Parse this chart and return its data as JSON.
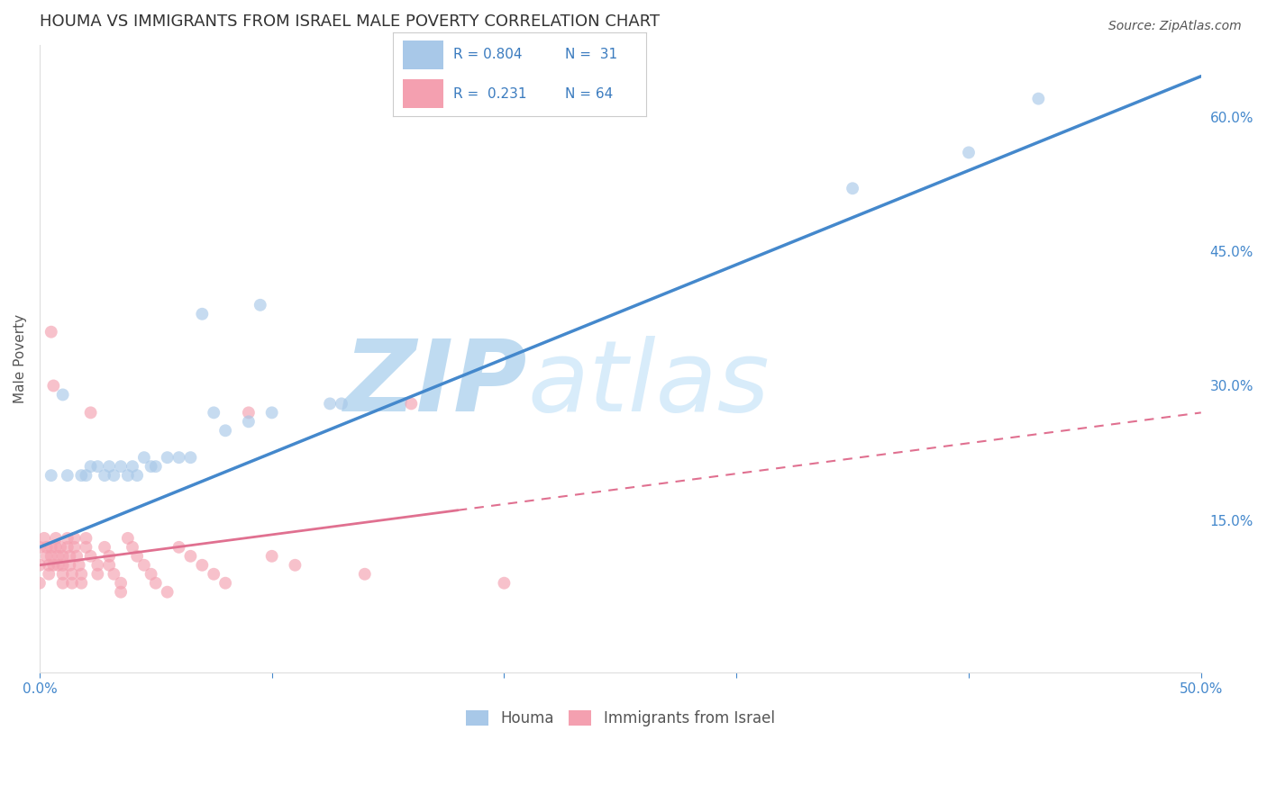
{
  "title": "HOUMA VS IMMIGRANTS FROM ISRAEL MALE POVERTY CORRELATION CHART",
  "source_text": "Source: ZipAtlas.com",
  "ylabel": "Male Poverty",
  "xlim": [
    0.0,
    0.5
  ],
  "ylim": [
    -0.02,
    0.68
  ],
  "xticks": [
    0.0,
    0.1,
    0.2,
    0.3,
    0.4,
    0.5
  ],
  "xticklabels": [
    "0.0%",
    "",
    "",
    "",
    "",
    "50.0%"
  ],
  "yticks_right": [
    0.15,
    0.3,
    0.45,
    0.6
  ],
  "ytick_right_labels": [
    "15.0%",
    "30.0%",
    "45.0%",
    "60.0%"
  ],
  "grid_color": "#cccccc",
  "background_color": "#ffffff",
  "houma_color": "#a8c8e8",
  "houma_edge_color": "#7aaed4",
  "israel_color": "#f4a0b0",
  "israel_edge_color": "#e07090",
  "houma_R": 0.804,
  "houma_N": 31,
  "israel_R": 0.231,
  "israel_N": 64,
  "houma_scatter": [
    [
      0.005,
      0.2
    ],
    [
      0.01,
      0.29
    ],
    [
      0.012,
      0.2
    ],
    [
      0.018,
      0.2
    ],
    [
      0.02,
      0.2
    ],
    [
      0.022,
      0.21
    ],
    [
      0.025,
      0.21
    ],
    [
      0.028,
      0.2
    ],
    [
      0.03,
      0.21
    ],
    [
      0.032,
      0.2
    ],
    [
      0.035,
      0.21
    ],
    [
      0.038,
      0.2
    ],
    [
      0.04,
      0.21
    ],
    [
      0.042,
      0.2
    ],
    [
      0.045,
      0.22
    ],
    [
      0.048,
      0.21
    ],
    [
      0.05,
      0.21
    ],
    [
      0.055,
      0.22
    ],
    [
      0.06,
      0.22
    ],
    [
      0.065,
      0.22
    ],
    [
      0.07,
      0.38
    ],
    [
      0.075,
      0.27
    ],
    [
      0.08,
      0.25
    ],
    [
      0.09,
      0.26
    ],
    [
      0.095,
      0.39
    ],
    [
      0.1,
      0.27
    ],
    [
      0.125,
      0.28
    ],
    [
      0.13,
      0.28
    ],
    [
      0.35,
      0.52
    ],
    [
      0.4,
      0.56
    ],
    [
      0.43,
      0.62
    ]
  ],
  "israel_scatter": [
    [
      0.0,
      0.12
    ],
    [
      0.0,
      0.1
    ],
    [
      0.0,
      0.08
    ],
    [
      0.002,
      0.13
    ],
    [
      0.003,
      0.12
    ],
    [
      0.003,
      0.11
    ],
    [
      0.004,
      0.1
    ],
    [
      0.004,
      0.09
    ],
    [
      0.005,
      0.12
    ],
    [
      0.005,
      0.11
    ],
    [
      0.005,
      0.36
    ],
    [
      0.006,
      0.3
    ],
    [
      0.006,
      0.1
    ],
    [
      0.007,
      0.13
    ],
    [
      0.007,
      0.12
    ],
    [
      0.008,
      0.11
    ],
    [
      0.008,
      0.1
    ],
    [
      0.009,
      0.12
    ],
    [
      0.01,
      0.11
    ],
    [
      0.01,
      0.1
    ],
    [
      0.01,
      0.09
    ],
    [
      0.01,
      0.08
    ],
    [
      0.012,
      0.13
    ],
    [
      0.012,
      0.12
    ],
    [
      0.013,
      0.11
    ],
    [
      0.013,
      0.1
    ],
    [
      0.014,
      0.09
    ],
    [
      0.014,
      0.08
    ],
    [
      0.015,
      0.13
    ],
    [
      0.015,
      0.12
    ],
    [
      0.016,
      0.11
    ],
    [
      0.017,
      0.1
    ],
    [
      0.018,
      0.09
    ],
    [
      0.018,
      0.08
    ],
    [
      0.02,
      0.13
    ],
    [
      0.02,
      0.12
    ],
    [
      0.022,
      0.27
    ],
    [
      0.022,
      0.11
    ],
    [
      0.025,
      0.1
    ],
    [
      0.025,
      0.09
    ],
    [
      0.028,
      0.12
    ],
    [
      0.03,
      0.11
    ],
    [
      0.03,
      0.1
    ],
    [
      0.032,
      0.09
    ],
    [
      0.035,
      0.08
    ],
    [
      0.035,
      0.07
    ],
    [
      0.038,
      0.13
    ],
    [
      0.04,
      0.12
    ],
    [
      0.042,
      0.11
    ],
    [
      0.045,
      0.1
    ],
    [
      0.048,
      0.09
    ],
    [
      0.05,
      0.08
    ],
    [
      0.055,
      0.07
    ],
    [
      0.06,
      0.12
    ],
    [
      0.065,
      0.11
    ],
    [
      0.07,
      0.1
    ],
    [
      0.075,
      0.09
    ],
    [
      0.08,
      0.08
    ],
    [
      0.09,
      0.27
    ],
    [
      0.1,
      0.11
    ],
    [
      0.11,
      0.1
    ],
    [
      0.14,
      0.09
    ],
    [
      0.16,
      0.28
    ],
    [
      0.2,
      0.08
    ]
  ],
  "houma_line_color": "#4488cc",
  "israel_line_color": "#e07090",
  "houma_line": [
    [
      0.0,
      0.12
    ],
    [
      0.5,
      0.645
    ]
  ],
  "israel_line": [
    [
      0.0,
      0.1
    ],
    [
      0.5,
      0.27
    ]
  ],
  "watermark_zip": "ZIP",
  "watermark_atlas": "atlas",
  "watermark_color": "#d0e8f8",
  "title_fontsize": 13,
  "axis_label_fontsize": 11,
  "tick_fontsize": 11,
  "tick_color": "#4488cc"
}
